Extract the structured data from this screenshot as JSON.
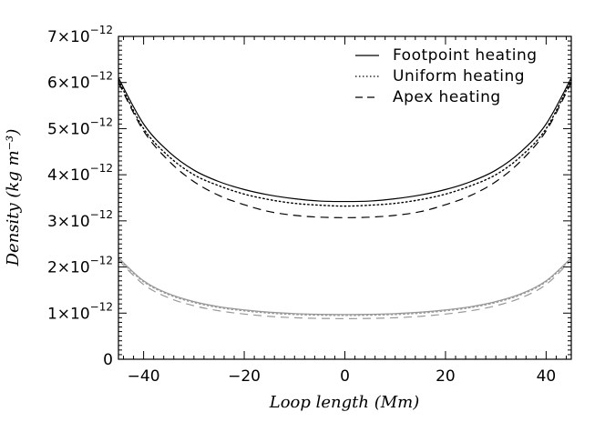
{
  "chart_data": {
    "type": "line",
    "title": "",
    "xlabel": "Loop length (Mm)",
    "ylabel": "Density (kg m⁻³)",
    "xlim": [
      -45,
      45
    ],
    "ylim": [
      0,
      7e-12
    ],
    "x_ticks": [
      -40,
      -20,
      0,
      20,
      40
    ],
    "x_tick_labels": [
      "−40",
      "−20",
      "0",
      "20",
      "40"
    ],
    "y_ticks": [
      {
        "value": 0,
        "mantissa": "0",
        "exponent": ""
      },
      {
        "value": 1e-12,
        "mantissa": "1×10",
        "exponent": "−12"
      },
      {
        "value": 2e-12,
        "mantissa": "2×10",
        "exponent": "−12"
      },
      {
        "value": 3e-12,
        "mantissa": "3×10",
        "exponent": "−12"
      },
      {
        "value": 4e-12,
        "mantissa": "4×10",
        "exponent": "−12"
      },
      {
        "value": 5e-12,
        "mantissa": "5×10",
        "exponent": "−12"
      },
      {
        "value": 6e-12,
        "mantissa": "6×10",
        "exponent": "−12"
      },
      {
        "value": 7e-12,
        "mantissa": "7×10",
        "exponent": "−12"
      }
    ],
    "legend_position": "top-right",
    "legend": [
      {
        "label": "Footpoint heating",
        "style": "solid"
      },
      {
        "label": "Uniform heating",
        "style": "dotted"
      },
      {
        "label": "Apex heating",
        "style": "dashed"
      }
    ],
    "colors": {
      "upper": "#000000",
      "lower": "#999999"
    },
    "x": [
      -45,
      -40,
      -35,
      -30,
      -25,
      -20,
      -15,
      -10,
      -5,
      0,
      5,
      10,
      15,
      20,
      25,
      30,
      35,
      40,
      45
    ],
    "series": [
      {
        "style": "solid",
        "group": "upper",
        "values": [
          6.1e-12,
          5.1e-12,
          4.5e-12,
          4.1e-12,
          3.85e-12,
          3.68e-12,
          3.56e-12,
          3.48e-12,
          3.43e-12,
          3.42e-12,
          3.43e-12,
          3.48e-12,
          3.56e-12,
          3.68e-12,
          3.85e-12,
          4.1e-12,
          4.5e-12,
          5.1e-12,
          6.1e-12
        ]
      },
      {
        "style": "dotted",
        "group": "upper",
        "values": [
          6.05e-12,
          5e-12,
          4.4e-12,
          4e-12,
          3.76e-12,
          3.58e-12,
          3.46e-12,
          3.38e-12,
          3.34e-12,
          3.32e-12,
          3.34e-12,
          3.38e-12,
          3.46e-12,
          3.58e-12,
          3.76e-12,
          4e-12,
          4.4e-12,
          5e-12,
          6.05e-12
        ]
      },
      {
        "style": "dashed",
        "group": "upper",
        "values": [
          6e-12,
          4.95e-12,
          4.3e-12,
          3.85e-12,
          3.55e-12,
          3.35e-12,
          3.2e-12,
          3.12e-12,
          3.08e-12,
          3.07e-12,
          3.08e-12,
          3.12e-12,
          3.2e-12,
          3.35e-12,
          3.55e-12,
          3.85e-12,
          4.3e-12,
          4.95e-12,
          6e-12
        ]
      },
      {
        "style": "solid",
        "group": "lower",
        "values": [
          2.2e-12,
          1.7e-12,
          1.42e-12,
          1.25e-12,
          1.14e-12,
          1.07e-12,
          1.02e-12,
          9.9e-13,
          9.75e-13,
          9.7e-13,
          9.75e-13,
          9.9e-13,
          1.02e-12,
          1.07e-12,
          1.14e-12,
          1.25e-12,
          1.42e-12,
          1.7e-12,
          2.2e-12
        ]
      },
      {
        "style": "dotted",
        "group": "lower",
        "values": [
          2.18e-12,
          1.68e-12,
          1.4e-12,
          1.23e-12,
          1.12e-12,
          1.05e-12,
          1e-12,
          9.7e-13,
          9.55e-13,
          9.5e-13,
          9.55e-13,
          9.7e-13,
          1e-12,
          1.05e-12,
          1.12e-12,
          1.23e-12,
          1.4e-12,
          1.68e-12,
          2.18e-12
        ]
      },
      {
        "style": "dashed",
        "group": "lower",
        "values": [
          2.15e-12,
          1.62e-12,
          1.33e-12,
          1.16e-12,
          1.05e-12,
          9.8e-13,
          9.3e-13,
          9e-13,
          8.85e-13,
          8.8e-13,
          8.85e-13,
          9e-13,
          9.3e-13,
          9.8e-13,
          1.05e-12,
          1.16e-12,
          1.33e-12,
          1.62e-12,
          2.15e-12
        ]
      }
    ]
  }
}
